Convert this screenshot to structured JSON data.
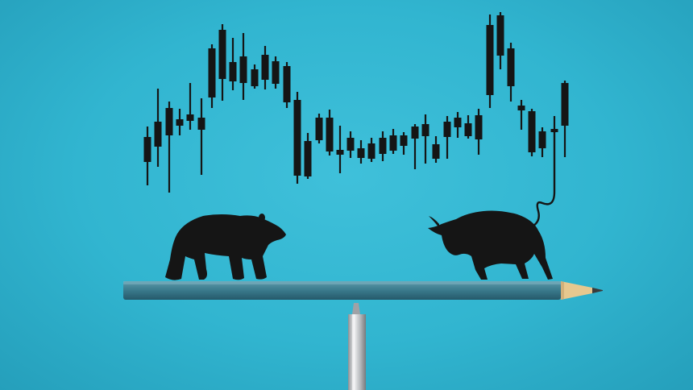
{
  "scene": {
    "background_color": "#30b4cf",
    "ink_color": "#151515",
    "pencil_body_color": "#3e7f90",
    "pencil_wood_color": "#e7c88f",
    "pen_color": "#c7c9cc"
  },
  "elements": {
    "candlestick_chart": "candlestick-chart",
    "bear": "bear-silhouette",
    "bull": "bull-silhouette",
    "pencil": "pencil-balance-beam",
    "pen": "pen-fulcrum"
  }
}
